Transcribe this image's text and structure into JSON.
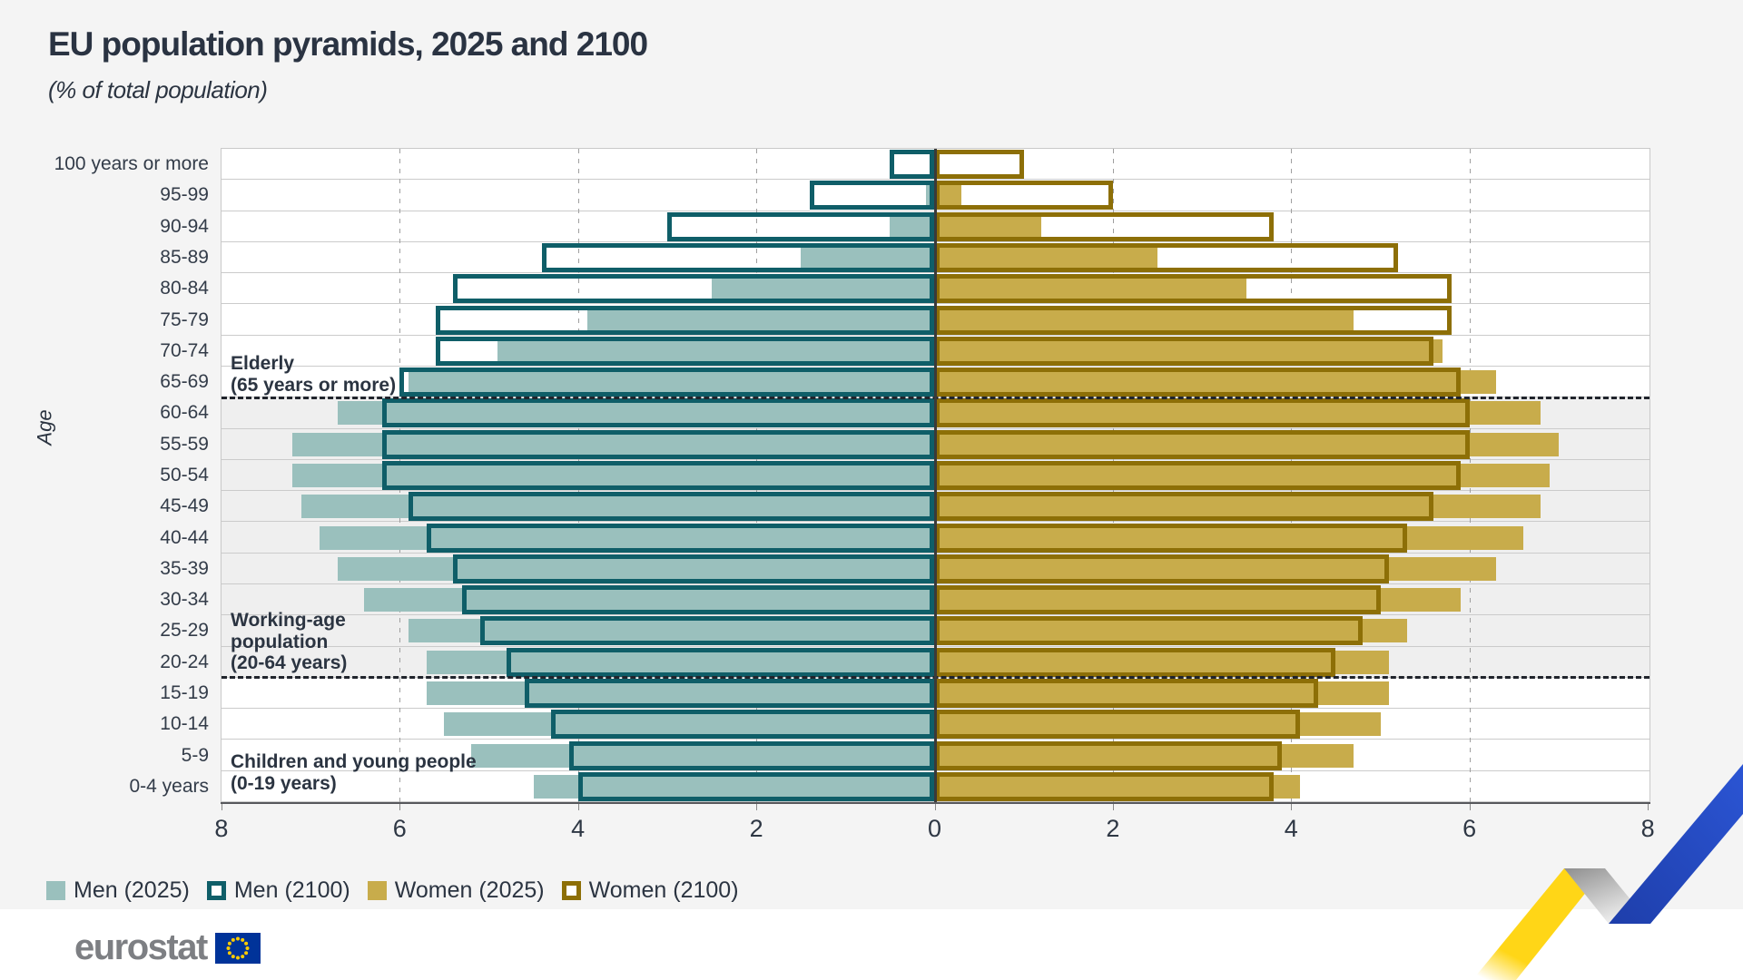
{
  "title": "EU population pyramids, 2025 and 2100",
  "subtitle": "(% of total population)",
  "y_axis_label": "Age",
  "annotations": {
    "elderly": {
      "lines": [
        "Elderly",
        "(65 years or more)"
      ]
    },
    "working": {
      "lines": [
        "Working-age",
        "population",
        "(20-64 years)"
      ]
    },
    "children": {
      "lines": [
        "Children and young people",
        "(0-19 years)"
      ]
    }
  },
  "legend": [
    {
      "label": "Men (2025)",
      "swatch": "fill",
      "color": "#9ac0bd"
    },
    {
      "label": "Men (2100)",
      "swatch": "outline",
      "color": "#0f5e68"
    },
    {
      "label": "Women (2025)",
      "swatch": "fill",
      "color": "#c8ac4b"
    },
    {
      "label": "Women (2100)",
      "swatch": "outline",
      "color": "#8d6f07"
    }
  ],
  "logo": {
    "text": "eurostat"
  },
  "colors": {
    "men_2025_fill": "#9ac0bd",
    "men_2100_outline": "#0f5e68",
    "women_2025_fill": "#c8ac4b",
    "women_2100_outline": "#8d6f07",
    "working_band_background": "#efefef",
    "page_background": "#f4f4f4",
    "ribbon_yellow": "#ffd617",
    "ribbon_blue": "#2446c2",
    "flag_blue": "#003399",
    "flag_star_yellow": "#ffcc00"
  },
  "chart_data": {
    "type": "bar",
    "subtype": "population-pyramid-mirrored",
    "title": "EU population pyramids, 2025 and 2100",
    "unit": "% of total population",
    "axis": {
      "xlim": [
        -8,
        8
      ],
      "tick_step": 2,
      "tick_values": [
        -8,
        -6,
        -4,
        -2,
        0,
        2,
        4,
        6,
        8
      ],
      "tick_labels": [
        "8",
        "6",
        "4",
        "2",
        "0",
        "2",
        "4",
        "6",
        "8"
      ],
      "gridlines_at": [
        2,
        4,
        6
      ],
      "grid": "dashed-vertical"
    },
    "categories": [
      "100 years or more",
      "95-99",
      "90-94",
      "85-89",
      "80-84",
      "75-79",
      "70-74",
      "65-69",
      "60-64",
      "55-59",
      "50-54",
      "45-49",
      "40-44",
      "35-39",
      "30-34",
      "25-29",
      "20-24",
      "15-19",
      "10-14",
      "5-9",
      "0-4 years"
    ],
    "series": [
      {
        "name": "Men (2025)",
        "side": "left",
        "style": "fill",
        "color": "#9ac0bd",
        "values": [
          0.05,
          0.1,
          0.5,
          1.5,
          2.5,
          3.9,
          4.9,
          5.9,
          6.7,
          7.2,
          7.2,
          7.1,
          6.9,
          6.7,
          6.4,
          5.9,
          5.7,
          5.7,
          5.5,
          5.2,
          4.5
        ]
      },
      {
        "name": "Men (2100)",
        "side": "left",
        "style": "outline",
        "color": "#0f5e68",
        "values": [
          0.5,
          1.4,
          3.0,
          4.4,
          5.4,
          5.6,
          5.6,
          6.0,
          6.2,
          6.2,
          6.2,
          5.9,
          5.7,
          5.4,
          5.3,
          5.1,
          4.8,
          4.6,
          4.3,
          4.1,
          4.0
        ]
      },
      {
        "name": "Women (2025)",
        "side": "right",
        "style": "fill",
        "color": "#c8ac4b",
        "values": [
          0.05,
          0.3,
          1.2,
          2.5,
          3.5,
          4.7,
          5.7,
          6.3,
          6.8,
          7.0,
          6.9,
          6.8,
          6.6,
          6.3,
          5.9,
          5.3,
          5.1,
          5.1,
          5.0,
          4.7,
          4.1
        ]
      },
      {
        "name": "Women (2100)",
        "side": "right",
        "style": "outline",
        "color": "#8d6f07",
        "values": [
          1.0,
          2.0,
          3.8,
          5.2,
          5.8,
          5.8,
          5.6,
          5.9,
          6.0,
          6.0,
          5.9,
          5.6,
          5.3,
          5.1,
          5.0,
          4.8,
          4.5,
          4.3,
          4.1,
          3.9,
          3.8
        ]
      }
    ],
    "group_bands": {
      "elderly_rows": [
        0,
        7
      ],
      "working_rows": [
        8,
        16
      ],
      "children_rows": [
        17,
        20
      ]
    },
    "legend_position": "bottom-left"
  }
}
